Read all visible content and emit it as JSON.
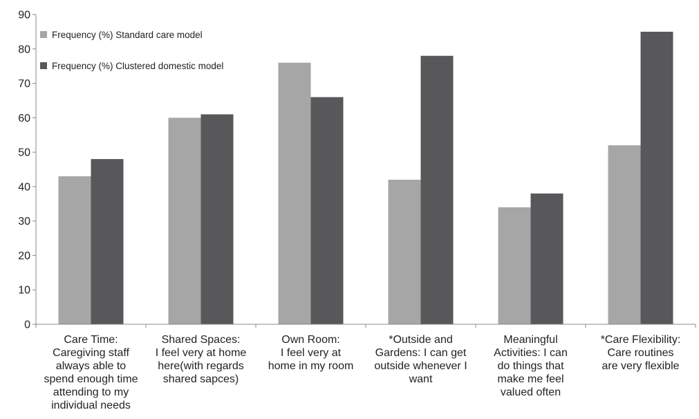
{
  "chart_data": {
    "type": "bar",
    "title": "",
    "xlabel": "",
    "ylabel": "",
    "ylim": [
      0,
      90
    ],
    "yticks": [
      0,
      10,
      20,
      30,
      40,
      50,
      60,
      70,
      80,
      90
    ],
    "grid": false,
    "legend_position": "top-left",
    "categories": [
      [
        "Care Time:",
        "Caregiving staff",
        "always able to",
        "spend enough time",
        "attending to my",
        "individual needs"
      ],
      [
        "Shared Spaces:",
        "I feel very at home",
        "here(with regards",
        "shared sapces)"
      ],
      [
        "Own Room:",
        "I feel very at",
        "home in my room"
      ],
      [
        "*Outside and",
        "Gardens: I can get",
        "outside whenever I",
        "want"
      ],
      [
        "Meaningful",
        "Activities: I can",
        "do things that",
        "make me feel",
        "valued often"
      ],
      [
        "*Care Flexibility:",
        "Care routines",
        "are very flexible"
      ]
    ],
    "series": [
      {
        "name": "Frequency (%) Standard care model",
        "color": "#a6a6a7",
        "values": [
          43,
          60,
          76,
          42,
          34,
          52
        ]
      },
      {
        "name": "Frequency (%) Clustered domestic model",
        "color": "#58585a",
        "values": [
          48,
          61,
          66,
          78,
          38,
          85
        ]
      }
    ]
  }
}
